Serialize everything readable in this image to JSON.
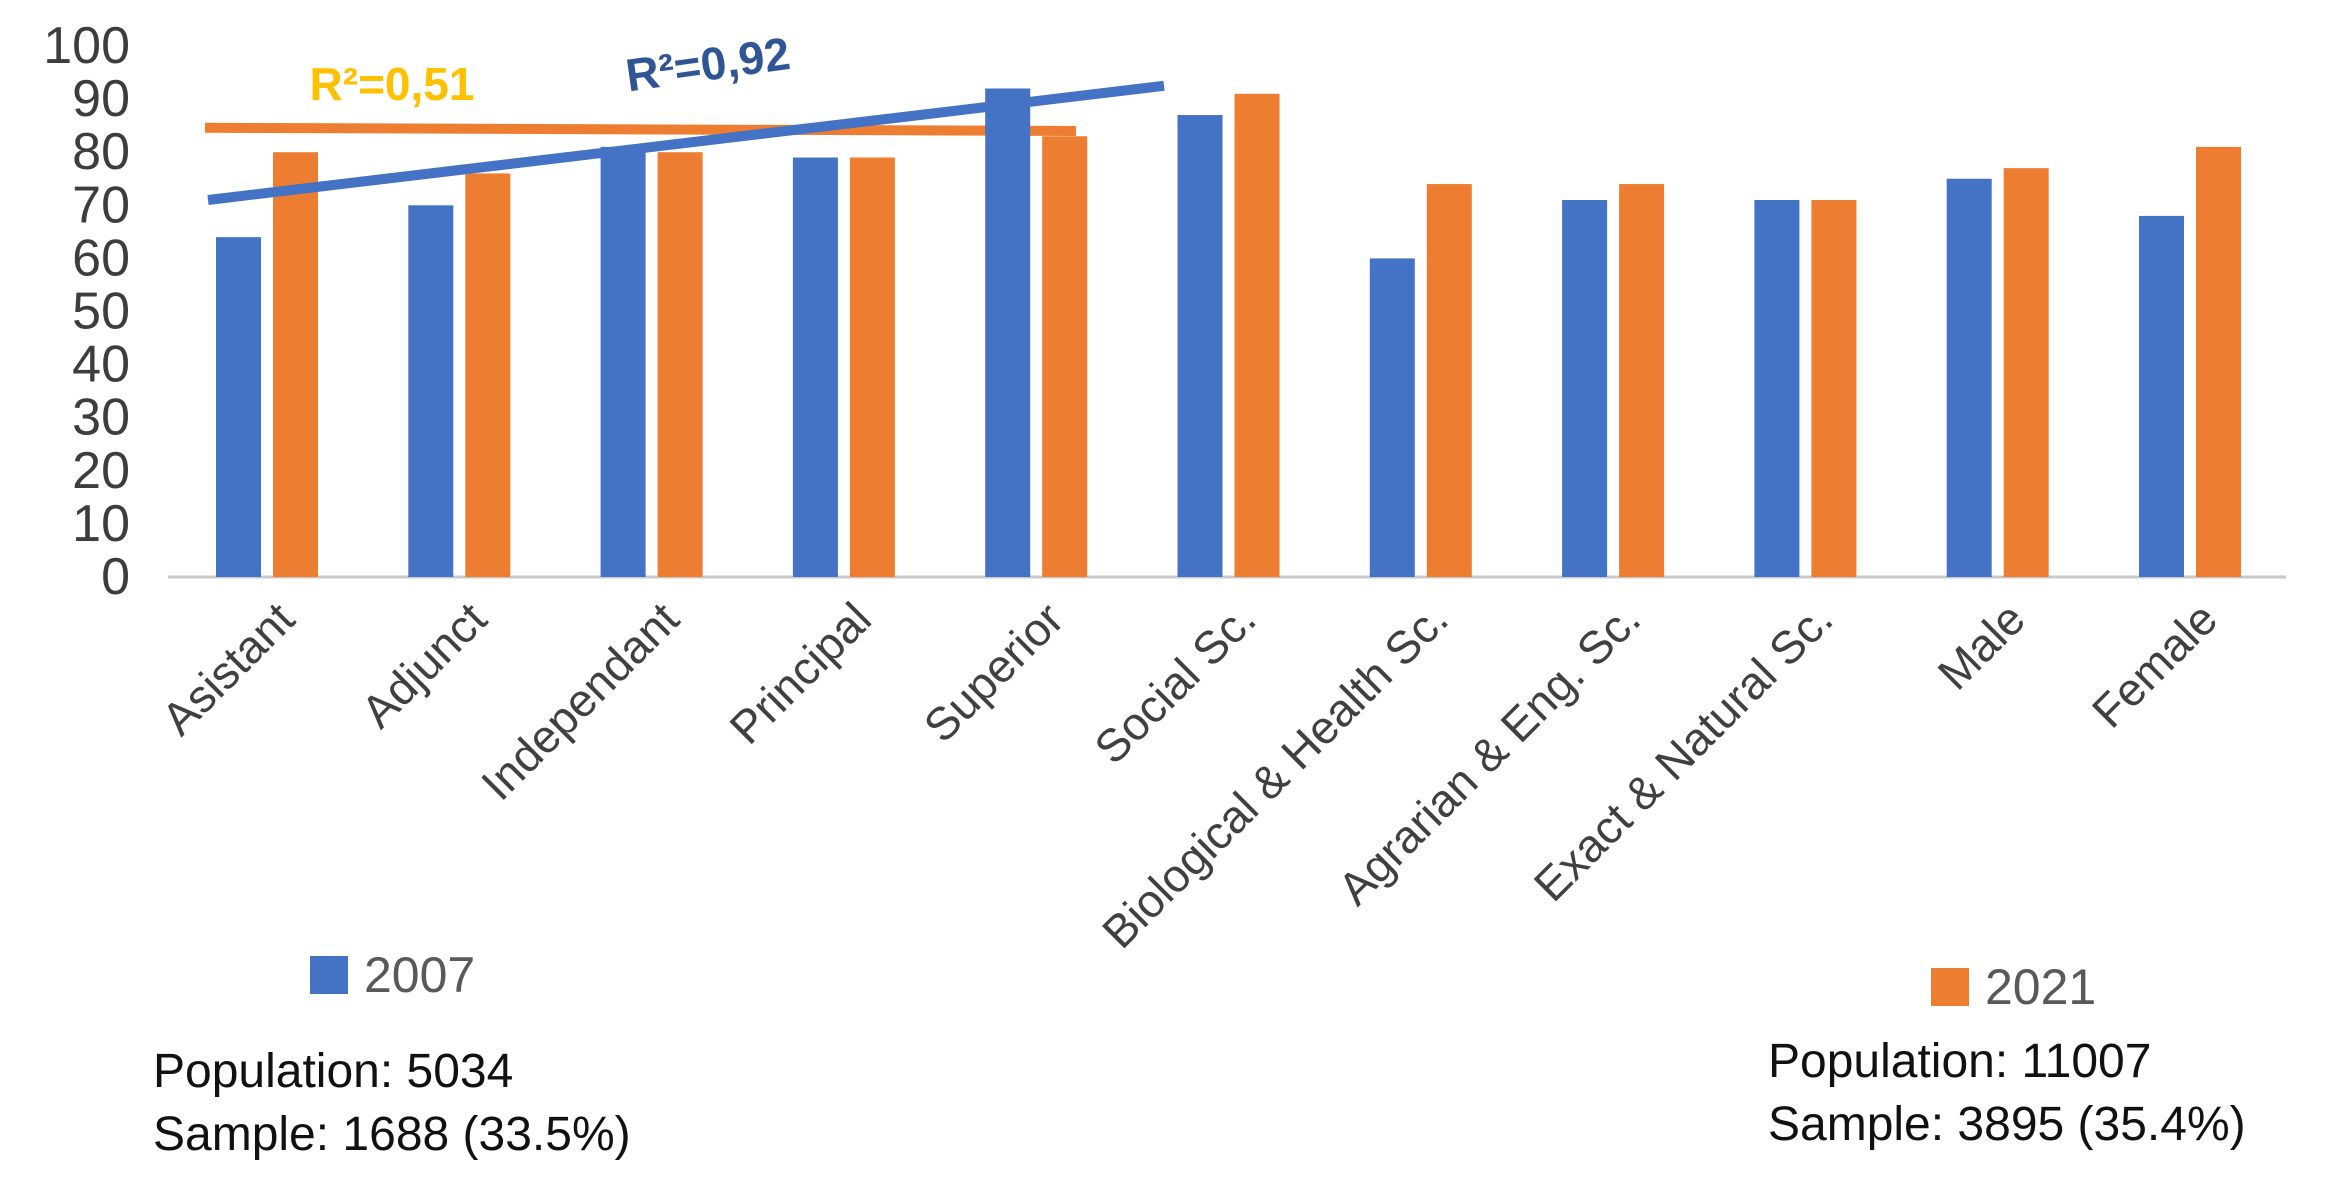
{
  "chart_data": {
    "type": "bar",
    "title": "",
    "categories": [
      "Asistant",
      "Adjunct",
      "Independant",
      "Principal",
      "Superior",
      "Social Sc.",
      "Biological & Health Sc.",
      "Agrarian & Eng. Sc.",
      "Exact & Natural Sc.",
      "Male",
      "Female"
    ],
    "series": [
      {
        "name": "2007",
        "color": "#4472C4",
        "values": [
          64,
          70,
          81,
          79,
          92,
          87,
          60,
          71,
          71,
          75,
          68
        ]
      },
      {
        "name": "2021",
        "color": "#ED7D31",
        "values": [
          80,
          76,
          80,
          79,
          83,
          91,
          74,
          74,
          71,
          77,
          81
        ]
      }
    ],
    "ylim": [
      0,
      100
    ],
    "ytick_step": 10,
    "xlabel": "",
    "ylabel": "",
    "grid": false,
    "legend_position": "bottom",
    "trendlines": [
      {
        "series": "2021",
        "label": "R²=0,51",
        "color": "#ED7D31",
        "label_color": "#FFC000",
        "start_value": 84.6,
        "end_value": 84.0,
        "span_categories": [
          "Asistant",
          "Superior"
        ]
      },
      {
        "series": "2007",
        "label": "R²=0,92",
        "color": "#4472C4",
        "label_color": "#2F5597",
        "start_value": 71.0,
        "end_value": 92.5,
        "span_categories": [
          "Asistant",
          "Superior"
        ]
      }
    ]
  },
  "legend": {
    "items": [
      {
        "label": "2007",
        "color": "#4472C4"
      },
      {
        "label": "2021",
        "color": "#ED7D31"
      }
    ]
  },
  "annotations": {
    "left": {
      "population": "Population: 5034",
      "sample": "Sample: 1688 (33.5%)"
    },
    "right": {
      "population": "Population: 11007",
      "sample": "Sample: 3895 (35.4%)"
    }
  }
}
